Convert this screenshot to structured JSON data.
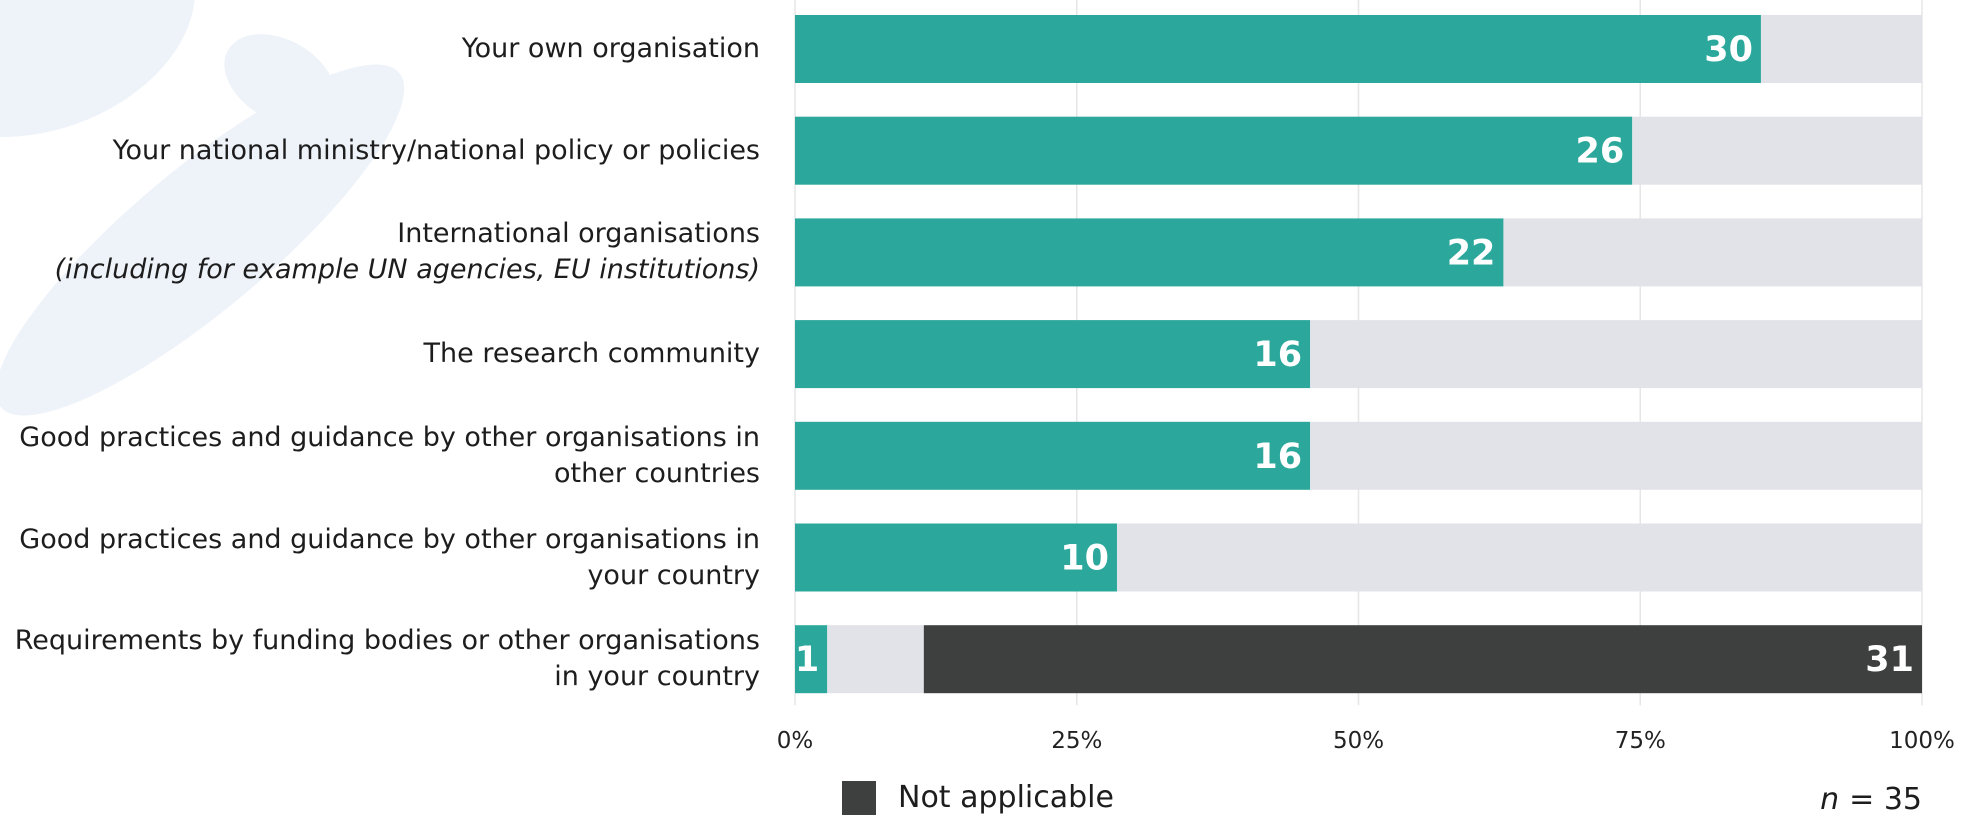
{
  "chart_data": {
    "type": "stacked-barh",
    "categories": [
      "Your own organisation",
      "Your national ministry/national policy or policies",
      "International organisations",
      "The research community",
      "Good practices and guidance by other organisations in other countries",
      "Good practices and guidance by other organisations in your country",
      "Requirements by funding bodies or other organisations in your country"
    ],
    "category_notes": [
      null,
      null,
      "(including for example UN agencies, EU institutions)",
      null,
      null,
      null,
      null
    ],
    "series": [
      {
        "color": "#2ba89b",
        "values": [
          85.71,
          74.29,
          62.86,
          45.71,
          45.71,
          28.57,
          2.86
        ],
        "value_labels": [
          "30",
          "26",
          "22",
          "16",
          "16",
          "10",
          "1"
        ]
      },
      {
        "color": "#e2e3e8",
        "values": [
          14.29,
          25.71,
          37.14,
          54.29,
          54.29,
          71.43,
          8.57
        ]
      },
      {
        "name": "Not applicable",
        "color": "#3d403f",
        "values": [
          null,
          null,
          null,
          null,
          null,
          null,
          88.57
        ],
        "value_labels": [
          null,
          null,
          null,
          null,
          null,
          null,
          "31"
        ]
      }
    ],
    "xlim": [
      0,
      100
    ],
    "xticks": [
      {
        "value": 0,
        "label": "0%"
      },
      {
        "value": 25,
        "label": "25%"
      },
      {
        "value": 50,
        "label": "50%"
      },
      {
        "value": 75,
        "label": "75%"
      },
      {
        "value": 100,
        "label": "100%"
      }
    ],
    "grid": true,
    "annotation": {
      "variable": "n",
      "text": "= 35"
    }
  }
}
